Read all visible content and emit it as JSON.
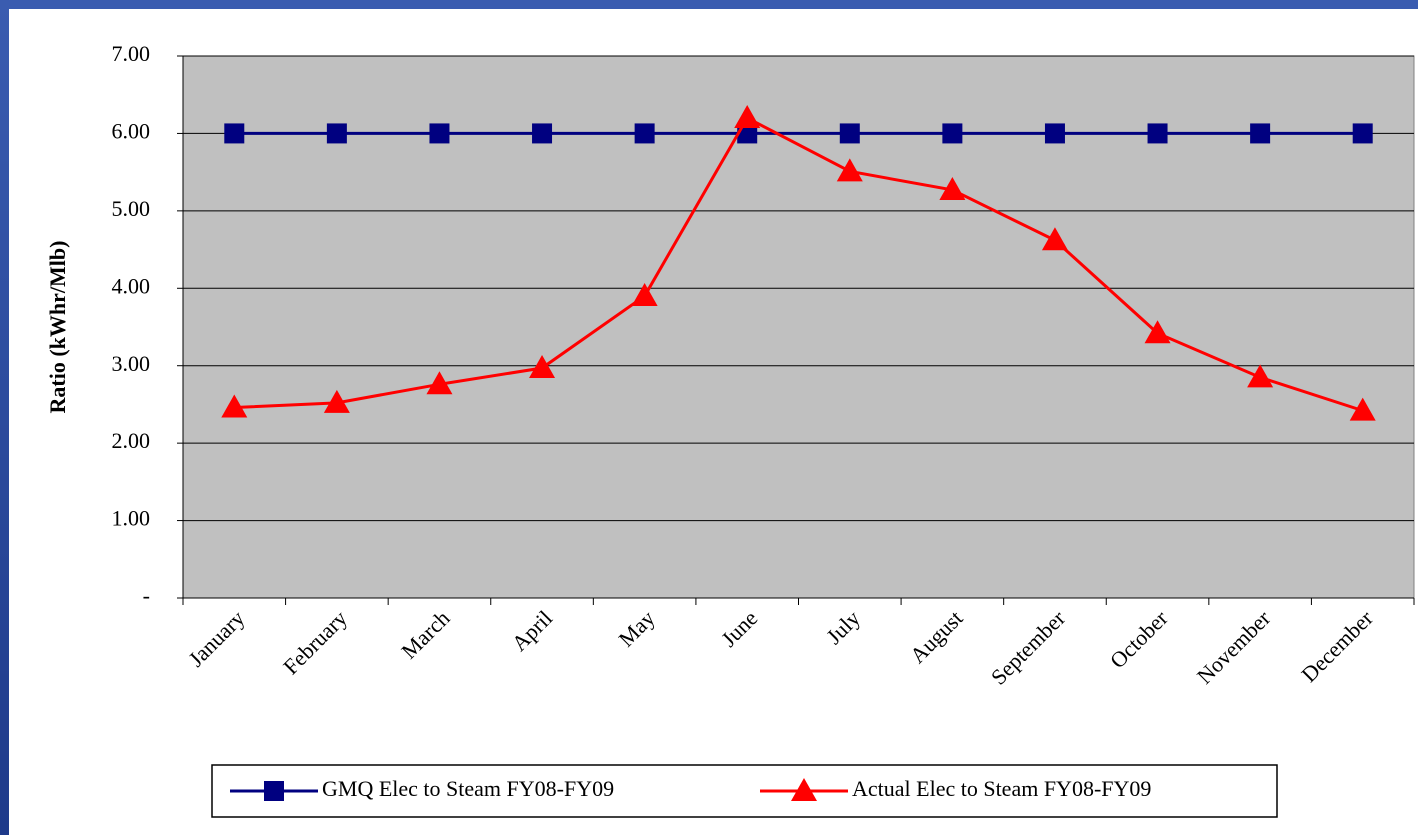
{
  "chart_data": {
    "type": "line",
    "ylabel": "Ratio (kWhr/Mlb)",
    "categories": [
      "January",
      "February",
      "March",
      "April",
      "May",
      "June",
      "July",
      "August",
      "September",
      "October",
      "November",
      "December"
    ],
    "series": [
      {
        "name": "GMQ Elec to Steam FY08-FY09",
        "color": "#000080",
        "marker": "square",
        "values": [
          6,
          6,
          6,
          6,
          6,
          6,
          6,
          6,
          6,
          6,
          6,
          6
        ]
      },
      {
        "name": "Actual Elec to Steam FY08-FY09",
        "color": "#ff0000",
        "marker": "triangle",
        "values": [
          2.46,
          2.52,
          2.76,
          2.97,
          3.9,
          6.2,
          5.51,
          5.27,
          4.62,
          3.42,
          2.85,
          2.42
        ]
      }
    ],
    "ylim": [
      0,
      7
    ],
    "yticks": [
      {
        "value": 0,
        "label": "-"
      },
      {
        "value": 1,
        "label": "1.00"
      },
      {
        "value": 2,
        "label": "2.00"
      },
      {
        "value": 3,
        "label": "3.00"
      },
      {
        "value": 4,
        "label": "4.00"
      },
      {
        "value": 5,
        "label": "5.00"
      },
      {
        "value": 6,
        "label": "6.00"
      },
      {
        "value": 7,
        "label": "7.00"
      }
    ],
    "grid": true,
    "legend": "bottom"
  }
}
